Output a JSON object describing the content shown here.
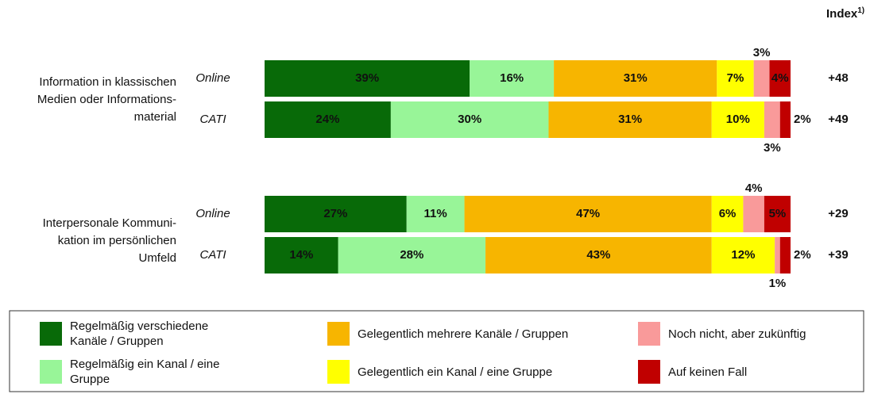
{
  "chart_data": {
    "type": "stacked_bar_horizontal",
    "index_title": "Index",
    "index_note": "1)",
    "group_labels": [
      [
        "Information in klassischen",
        "Medien oder Informations-",
        "material"
      ],
      [
        "Interpersonale Kommuni-",
        "kation im persönlichen",
        "Umfeld"
      ]
    ],
    "categories": [
      "Online",
      "CATI",
      "Online",
      "CATI"
    ],
    "xlim": [
      0,
      100
    ],
    "series": [
      {
        "name": "Regelmäßig verschiedene Kanäle / Gruppen",
        "color": "#086a08",
        "values": [
          39,
          24,
          27,
          14
        ],
        "value_labels": [
          "39%",
          "24%",
          "27%",
          "14%"
        ]
      },
      {
        "name": "Regelmäßig ein Kanal / eine Gruppe",
        "color": "#98f598",
        "values": [
          16,
          30,
          11,
          28
        ],
        "value_labels": [
          "16%",
          "30%",
          "11%",
          "28%"
        ]
      },
      {
        "name": "Gelegentlich mehrere Kanäle / Gruppen",
        "color": "#f7b500",
        "values": [
          31,
          31,
          47,
          43
        ],
        "value_labels": [
          "31%",
          "31%",
          "47%",
          "43%"
        ]
      },
      {
        "name": "Gelegentlich ein Kanal / eine Gruppe",
        "color": "#ffff00",
        "values": [
          7,
          10,
          6,
          12
        ],
        "value_labels": [
          "7%",
          "10%",
          "6%",
          "12%"
        ]
      },
      {
        "name": "Noch nicht, aber zukünftig",
        "color": "#f99a9a",
        "values": [
          3,
          3,
          4,
          1
        ],
        "value_labels": [
          "3%",
          "3%",
          "4%",
          "1%"
        ]
      },
      {
        "name": "Auf keinen Fall",
        "color": "#c00000",
        "values": [
          4,
          2,
          5,
          2
        ],
        "value_labels": [
          "4%",
          "2%",
          "5%",
          "2%"
        ]
      }
    ],
    "index_values": [
      48,
      49,
      29,
      39
    ],
    "index_labels": [
      "+48",
      "+49",
      "+29",
      "+39"
    ]
  }
}
